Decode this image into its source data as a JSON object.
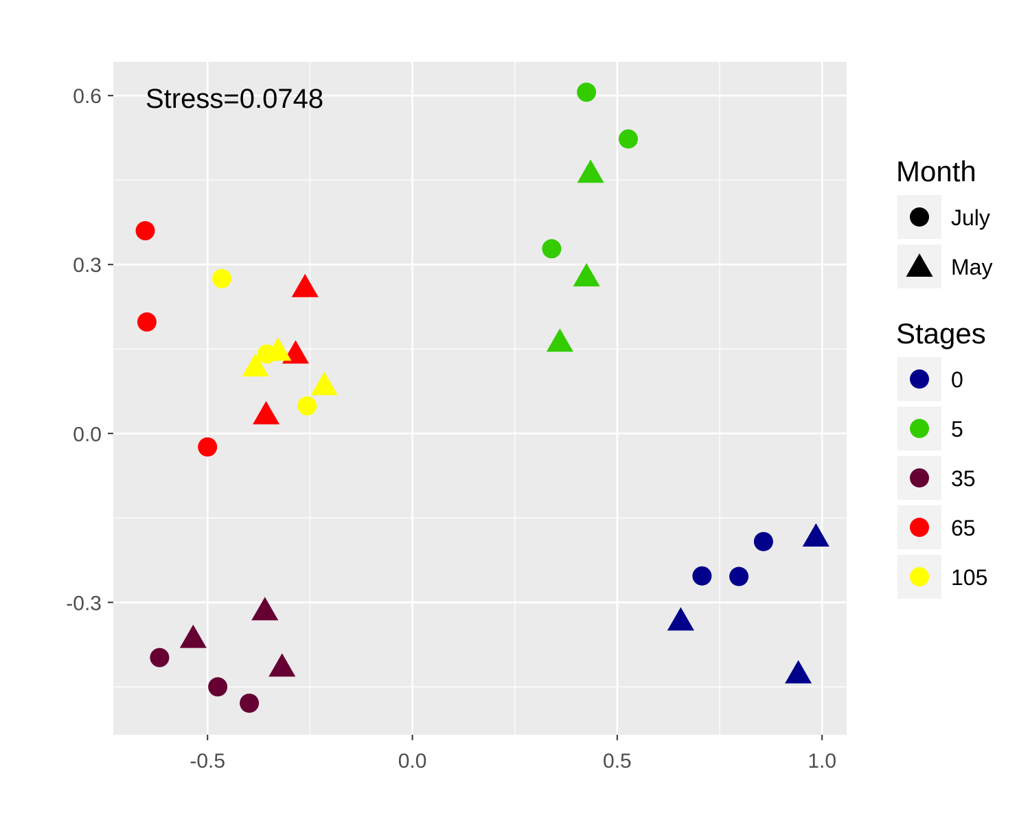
{
  "chart_data": {
    "type": "scatter",
    "title": "",
    "xlabel": "",
    "ylabel": "",
    "xlim": [
      -0.73,
      1.06
    ],
    "ylim": [
      -0.535,
      0.66
    ],
    "x_ticks": [
      -0.5,
      0.0,
      0.5,
      1.0
    ],
    "x_tick_labels": [
      "-0.5",
      "0.0",
      "0.5",
      "1.0"
    ],
    "y_ticks": [
      -0.3,
      0.0,
      0.3,
      0.6
    ],
    "y_tick_labels": [
      "-0.3",
      "0.0",
      "0.3",
      "0.6"
    ],
    "grid": true,
    "background": "#ebebeb",
    "annotation": "Stress=0.0748",
    "legends": [
      {
        "title": "Month",
        "kind": "shape",
        "placement": "right",
        "items": [
          {
            "label": "July",
            "shape": "circle"
          },
          {
            "label": "May",
            "shape": "triangle"
          }
        ]
      },
      {
        "title": "Stages",
        "kind": "color",
        "placement": "right",
        "items": [
          {
            "label": "0",
            "color": "#00008b"
          },
          {
            "label": "5",
            "color": "#33cc00"
          },
          {
            "label": "35",
            "color": "#660033"
          },
          {
            "label": "65",
            "color": "#ff0000"
          },
          {
            "label": "105",
            "color": "#ffff00"
          }
        ]
      }
    ],
    "points": [
      {
        "x": 0.425,
        "y": 0.606,
        "month": "July",
        "stage": "5"
      },
      {
        "x": 0.527,
        "y": 0.523,
        "month": "July",
        "stage": "5"
      },
      {
        "x": 0.435,
        "y": 0.461,
        "month": "May",
        "stage": "5"
      },
      {
        "x": 0.34,
        "y": 0.328,
        "month": "July",
        "stage": "5"
      },
      {
        "x": 0.425,
        "y": 0.277,
        "month": "May",
        "stage": "5"
      },
      {
        "x": 0.36,
        "y": 0.161,
        "month": "May",
        "stage": "5"
      },
      {
        "x": -0.652,
        "y": 0.36,
        "month": "July",
        "stage": "65"
      },
      {
        "x": -0.648,
        "y": 0.198,
        "month": "July",
        "stage": "65"
      },
      {
        "x": -0.262,
        "y": 0.258,
        "month": "May",
        "stage": "65"
      },
      {
        "x": -0.285,
        "y": 0.14,
        "month": "May",
        "stage": "65"
      },
      {
        "x": -0.357,
        "y": 0.032,
        "month": "May",
        "stage": "65"
      },
      {
        "x": -0.5,
        "y": -0.024,
        "month": "July",
        "stage": "65"
      },
      {
        "x": -0.465,
        "y": 0.275,
        "month": "July",
        "stage": "105"
      },
      {
        "x": -0.355,
        "y": 0.141,
        "month": "July",
        "stage": "105"
      },
      {
        "x": -0.328,
        "y": 0.145,
        "month": "May",
        "stage": "105"
      },
      {
        "x": -0.383,
        "y": 0.117,
        "month": "May",
        "stage": "105"
      },
      {
        "x": -0.215,
        "y": 0.084,
        "month": "May",
        "stage": "105"
      },
      {
        "x": -0.257,
        "y": 0.049,
        "month": "July",
        "stage": "105"
      },
      {
        "x": -0.36,
        "y": -0.316,
        "month": "May",
        "stage": "35"
      },
      {
        "x": -0.535,
        "y": -0.365,
        "month": "May",
        "stage": "35"
      },
      {
        "x": -0.617,
        "y": -0.398,
        "month": "July",
        "stage": "35"
      },
      {
        "x": -0.318,
        "y": -0.416,
        "month": "May",
        "stage": "35"
      },
      {
        "x": -0.475,
        "y": -0.45,
        "month": "July",
        "stage": "35"
      },
      {
        "x": -0.398,
        "y": -0.479,
        "month": "July",
        "stage": "35"
      },
      {
        "x": 0.857,
        "y": -0.192,
        "month": "July",
        "stage": "0"
      },
      {
        "x": 0.985,
        "y": -0.185,
        "month": "May",
        "stage": "0"
      },
      {
        "x": 0.707,
        "y": -0.253,
        "month": "July",
        "stage": "0"
      },
      {
        "x": 0.797,
        "y": -0.254,
        "month": "July",
        "stage": "0"
      },
      {
        "x": 0.655,
        "y": -0.334,
        "month": "May",
        "stage": "0"
      },
      {
        "x": 0.942,
        "y": -0.428,
        "month": "May",
        "stage": "0"
      }
    ]
  }
}
